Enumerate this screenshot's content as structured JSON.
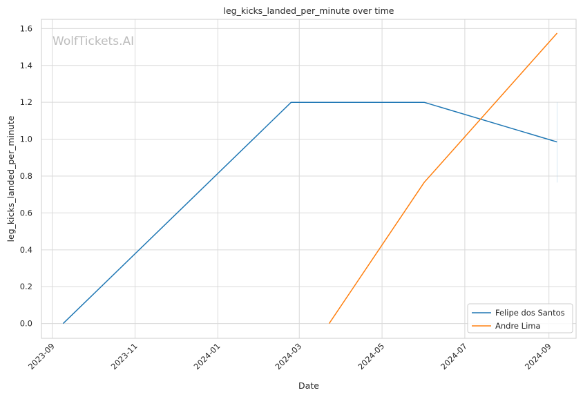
{
  "chart_data": {
    "type": "line",
    "title": "leg_kicks_landed_per_minute over time",
    "xlabel": "Date",
    "ylabel": "leg_kicks_landed_per_minute",
    "watermark": "WolfTickets.AI",
    "x_ticks": [
      "2023-09",
      "2023-11",
      "2024-01",
      "2024-03",
      "2024-05",
      "2024-07",
      "2024-09"
    ],
    "y_ticks": [
      "0.0",
      "0.2",
      "0.4",
      "0.6",
      "0.8",
      "1.0",
      "1.2",
      "1.4",
      "1.6"
    ],
    "xlim": [
      "2023-08-24",
      "2024-09-21"
    ],
    "ylim": [
      -0.08,
      1.65
    ],
    "grid": true,
    "legend_position": "lower-right",
    "series": [
      {
        "name": "Felipe dos Santos",
        "color": "#1f77b4",
        "x": [
          "2023-09-09",
          "2024-02-24",
          "2024-06-01",
          "2024-09-07"
        ],
        "y": [
          0.0,
          1.2,
          1.2,
          0.985
        ]
      },
      {
        "name": "Andre Lima",
        "color": "#ff7f0e",
        "x": [
          "2024-03-23",
          "2024-06-01",
          "2024-09-07"
        ],
        "y": [
          0.0,
          0.765,
          1.575
        ]
      }
    ]
  }
}
